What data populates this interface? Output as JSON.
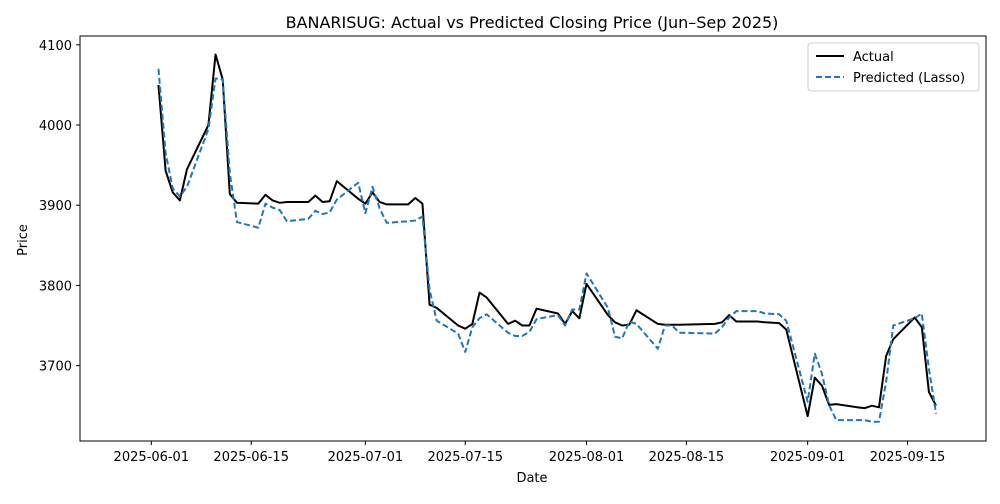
{
  "chart_data": {
    "type": "line",
    "title": "BANARISUG: Actual vs Predicted Closing Price (Jun–Sep 2025)",
    "xlabel": "Date",
    "ylabel": "Price",
    "x_tick_labels": [
      "2025-06-01",
      "2025-06-15",
      "2025-07-01",
      "2025-07-15",
      "2025-08-01",
      "2025-08-15",
      "2025-09-01",
      "2025-09-15"
    ],
    "y_ticks": [
      3700,
      3800,
      3900,
      4000,
      4100
    ],
    "xlim": [
      "2025-05-22",
      "2025-09-26"
    ],
    "ylim": [
      3606,
      4111
    ],
    "legend_position": "top-right",
    "series": [
      {
        "name": "Actual",
        "color": "#000000",
        "style": "solid",
        "points": [
          [
            "2025-06-02",
            4050
          ],
          [
            "2025-06-03",
            3943
          ],
          [
            "2025-06-04",
            3916
          ],
          [
            "2025-06-05",
            3906
          ],
          [
            "2025-06-06",
            3945
          ],
          [
            "2025-06-09",
            4000
          ],
          [
            "2025-06-10",
            4088
          ],
          [
            "2025-06-11",
            4057
          ],
          [
            "2025-06-12",
            3914
          ],
          [
            "2025-06-13",
            3903
          ],
          [
            "2025-06-16",
            3902
          ],
          [
            "2025-06-17",
            3913
          ],
          [
            "2025-06-18",
            3906
          ],
          [
            "2025-06-19",
            3903
          ],
          [
            "2025-06-20",
            3904
          ],
          [
            "2025-06-23",
            3904
          ],
          [
            "2025-06-24",
            3912
          ],
          [
            "2025-06-25",
            3904
          ],
          [
            "2025-06-26",
            3905
          ],
          [
            "2025-06-27",
            3930
          ],
          [
            "2025-06-30",
            3908
          ],
          [
            "2025-07-01",
            3902
          ],
          [
            "2025-07-02",
            3916
          ],
          [
            "2025-07-03",
            3904
          ],
          [
            "2025-07-04",
            3901
          ],
          [
            "2025-07-07",
            3901
          ],
          [
            "2025-07-08",
            3909
          ],
          [
            "2025-07-09",
            3902
          ],
          [
            "2025-07-10",
            3776
          ],
          [
            "2025-07-11",
            3772
          ],
          [
            "2025-07-14",
            3750
          ],
          [
            "2025-07-15",
            3746
          ],
          [
            "2025-07-16",
            3752
          ],
          [
            "2025-07-17",
            3791
          ],
          [
            "2025-07-18",
            3785
          ],
          [
            "2025-07-21",
            3752
          ],
          [
            "2025-07-22",
            3756
          ],
          [
            "2025-07-23",
            3750
          ],
          [
            "2025-07-24",
            3750
          ],
          [
            "2025-07-25",
            3771
          ],
          [
            "2025-07-28",
            3765
          ],
          [
            "2025-07-29",
            3752
          ],
          [
            "2025-07-30",
            3768
          ],
          [
            "2025-07-31",
            3759
          ],
          [
            "2025-08-01",
            3802
          ],
          [
            "2025-08-04",
            3763
          ],
          [
            "2025-08-05",
            3754
          ],
          [
            "2025-08-06",
            3750
          ],
          [
            "2025-08-07",
            3751
          ],
          [
            "2025-08-08",
            3769
          ],
          [
            "2025-08-11",
            3752
          ],
          [
            "2025-08-12",
            3751
          ],
          [
            "2025-08-13",
            3751
          ],
          [
            "2025-08-14",
            3751
          ],
          [
            "2025-08-19",
            3752
          ],
          [
            "2025-08-20",
            3754
          ],
          [
            "2025-08-21",
            3763
          ],
          [
            "2025-08-22",
            3755
          ],
          [
            "2025-08-25",
            3755
          ],
          [
            "2025-08-26",
            3754
          ],
          [
            "2025-08-28",
            3753
          ],
          [
            "2025-08-29",
            3745
          ],
          [
            "2025-09-01",
            3637
          ],
          [
            "2025-09-02",
            3685
          ],
          [
            "2025-09-03",
            3675
          ],
          [
            "2025-09-04",
            3651
          ],
          [
            "2025-09-05",
            3652
          ],
          [
            "2025-09-08",
            3648
          ],
          [
            "2025-09-09",
            3647
          ],
          [
            "2025-09-10",
            3650
          ],
          [
            "2025-09-11",
            3648
          ],
          [
            "2025-09-12",
            3712
          ],
          [
            "2025-09-13",
            3733
          ],
          [
            "2025-09-16",
            3760
          ],
          [
            "2025-09-17",
            3748
          ],
          [
            "2025-09-18",
            3667
          ],
          [
            "2025-09-19",
            3650
          ]
        ]
      },
      {
        "name": "Predicted (Lasso)",
        "color": "#1f77b4",
        "style": "dashed",
        "points": [
          [
            "2025-06-02",
            4070
          ],
          [
            "2025-06-03",
            3965
          ],
          [
            "2025-06-04",
            3921
          ],
          [
            "2025-06-05",
            3911
          ],
          [
            "2025-06-06",
            3923
          ],
          [
            "2025-06-09",
            3995
          ],
          [
            "2025-06-10",
            4058
          ],
          [
            "2025-06-11",
            4057
          ],
          [
            "2025-06-12",
            3940
          ],
          [
            "2025-06-13",
            3879
          ],
          [
            "2025-06-16",
            3872
          ],
          [
            "2025-06-17",
            3902
          ],
          [
            "2025-06-18",
            3897
          ],
          [
            "2025-06-19",
            3894
          ],
          [
            "2025-06-20",
            3880
          ],
          [
            "2025-06-23",
            3883
          ],
          [
            "2025-06-24",
            3893
          ],
          [
            "2025-06-25",
            3889
          ],
          [
            "2025-06-26",
            3891
          ],
          [
            "2025-06-27",
            3907
          ],
          [
            "2025-06-30",
            3928
          ],
          [
            "2025-07-01",
            3890
          ],
          [
            "2025-07-02",
            3923
          ],
          [
            "2025-07-03",
            3896
          ],
          [
            "2025-07-04",
            3878
          ],
          [
            "2025-07-07",
            3880
          ],
          [
            "2025-07-08",
            3881
          ],
          [
            "2025-07-09",
            3886
          ],
          [
            "2025-07-10",
            3795
          ],
          [
            "2025-07-11",
            3756
          ],
          [
            "2025-07-14",
            3740
          ],
          [
            "2025-07-15",
            3717
          ],
          [
            "2025-07-16",
            3748
          ],
          [
            "2025-07-17",
            3759
          ],
          [
            "2025-07-18",
            3764
          ],
          [
            "2025-07-21",
            3741
          ],
          [
            "2025-07-22",
            3737
          ],
          [
            "2025-07-23",
            3737
          ],
          [
            "2025-07-24",
            3742
          ],
          [
            "2025-07-25",
            3758
          ],
          [
            "2025-07-28",
            3763
          ],
          [
            "2025-07-29",
            3750
          ],
          [
            "2025-07-30",
            3770
          ],
          [
            "2025-07-31",
            3770
          ],
          [
            "2025-08-01",
            3815
          ],
          [
            "2025-08-04",
            3772
          ],
          [
            "2025-08-05",
            3736
          ],
          [
            "2025-08-06",
            3734
          ],
          [
            "2025-08-07",
            3755
          ],
          [
            "2025-08-08",
            3752
          ],
          [
            "2025-08-11",
            3721
          ],
          [
            "2025-08-12",
            3750
          ],
          [
            "2025-08-13",
            3750
          ],
          [
            "2025-08-14",
            3741
          ],
          [
            "2025-08-19",
            3740
          ],
          [
            "2025-08-20",
            3748
          ],
          [
            "2025-08-21",
            3760
          ],
          [
            "2025-08-22",
            3768
          ],
          [
            "2025-08-25",
            3768
          ],
          [
            "2025-08-26",
            3765
          ],
          [
            "2025-08-28",
            3764
          ],
          [
            "2025-08-29",
            3756
          ],
          [
            "2025-09-01",
            3655
          ],
          [
            "2025-09-02",
            3715
          ],
          [
            "2025-09-03",
            3690
          ],
          [
            "2025-09-04",
            3651
          ],
          [
            "2025-09-05",
            3632
          ],
          [
            "2025-09-08",
            3632
          ],
          [
            "2025-09-09",
            3632
          ],
          [
            "2025-09-10",
            3630
          ],
          [
            "2025-09-11",
            3630
          ],
          [
            "2025-09-12",
            3680
          ],
          [
            "2025-09-13",
            3750
          ],
          [
            "2025-09-16",
            3759
          ],
          [
            "2025-09-17",
            3765
          ],
          [
            "2025-09-18",
            3696
          ],
          [
            "2025-09-19",
            3640
          ]
        ]
      }
    ]
  }
}
